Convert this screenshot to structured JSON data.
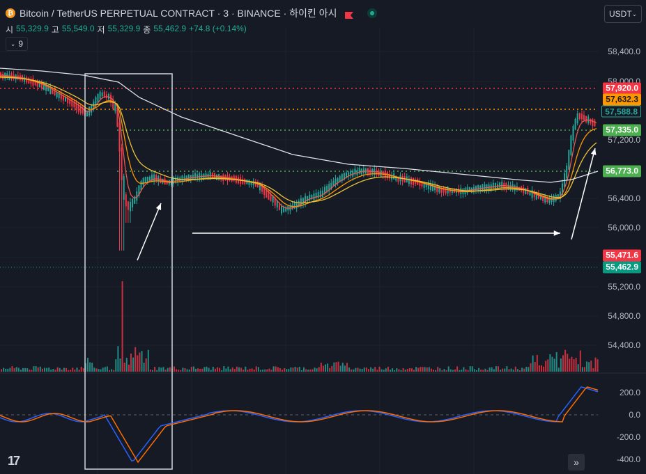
{
  "header": {
    "title": "Bitcoin / TetherUS PERPETUAL CONTRACT · 3 · BINANCE · 하이킨 아시",
    "icon": "bitcoin-icon"
  },
  "ohlc": {
    "open_label": "시",
    "open": "55,329.9",
    "high_label": "고",
    "high": "55,549.0",
    "low_label": "저",
    "low": "55,329.9",
    "close_label": "종",
    "close": "55,462.9",
    "change": "+74.8 (+0.14%)"
  },
  "indicator_toggle": {
    "count": "9"
  },
  "currency": {
    "selected": "USDT"
  },
  "price_axis": {
    "ticks": [
      "58,400.0",
      "58,000.0",
      "57,200.0",
      "56,400.0",
      "56,000.0",
      "55,200.0",
      "54,800.0",
      "54,400.0"
    ]
  },
  "price_labels": [
    {
      "value": "57,920.0",
      "bg": "#f23645",
      "fg": "#ffffff"
    },
    {
      "value": "57,632.3",
      "bg": "#ff9800",
      "fg": "#161a25"
    },
    {
      "value": "57,588.8",
      "bg": "#161a25",
      "fg": "#26a69a"
    },
    {
      "value": "57,335.0",
      "bg": "#4caf50",
      "fg": "#ffffff"
    },
    {
      "value": "56,773.0",
      "bg": "#4caf50",
      "fg": "#ffffff"
    },
    {
      "value": "55,471.6",
      "bg": "#f23645",
      "fg": "#ffffff"
    },
    {
      "value": "55,462.9",
      "bg": "#089981",
      "fg": "#ffffff"
    }
  ],
  "osc_axis": {
    "ticks": [
      "200.0",
      "0.0",
      "-200.0",
      "-400.0"
    ]
  },
  "colors": {
    "up": "#26a69a",
    "down": "#f23645",
    "ma_white": "#e0e3eb",
    "ma_yellow": "#e8c33a",
    "ma_orange": "#ff9800",
    "ma_red": "#e55a4e",
    "line_red": "#f23645",
    "line_orange": "#ff9800",
    "line_green": "#4caf50",
    "osc_blue": "#2962ff",
    "osc_orange": "#ff6d00"
  },
  "footer": {
    "logo": "17",
    "scroll_icon": "double-chevron-right-icon"
  }
}
